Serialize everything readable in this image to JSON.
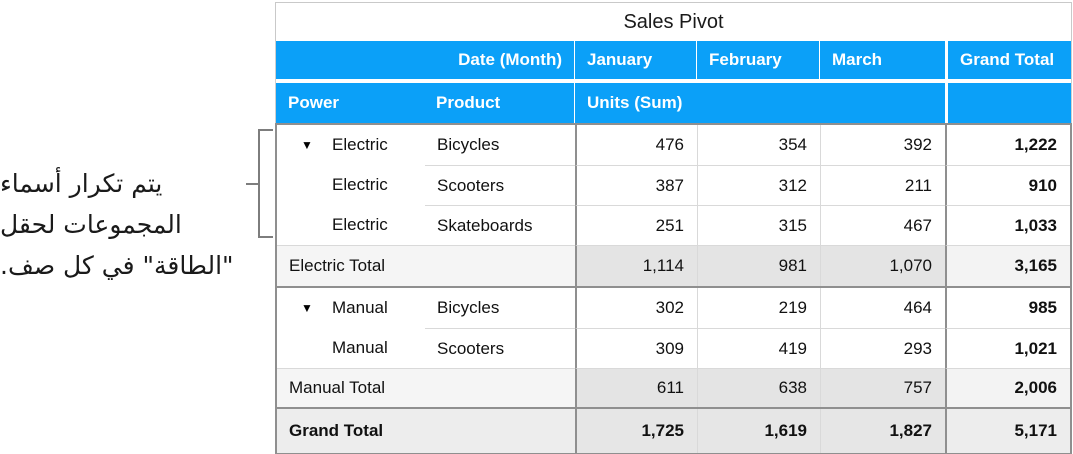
{
  "title": "Sales Pivot",
  "annotation": {
    "lines": [
      "يتم تكرار أسماء",
      "المجموعات لحقل",
      "\"الطاقة\" في كل صف."
    ]
  },
  "icons": {
    "disclosure_down": "▼"
  },
  "header": {
    "date_month": "Date (Month)",
    "months": [
      "January",
      "February",
      "March"
    ],
    "grand_total": "Grand Total",
    "power": "Power",
    "product": "Product",
    "units_sum": "Units (Sum)"
  },
  "rows": [
    {
      "power": "Electric",
      "product": "Bicycles",
      "values": [
        "476",
        "354",
        "392"
      ],
      "total": "1,222"
    },
    {
      "power": "Electric",
      "product": "Scooters",
      "values": [
        "387",
        "312",
        "211"
      ],
      "total": "910"
    },
    {
      "power": "Electric",
      "product": "Skateboards",
      "values": [
        "251",
        "315",
        "467"
      ],
      "total": "1,033"
    },
    {
      "label": "Electric Total",
      "values": [
        "1,114",
        "981",
        "1,070"
      ],
      "total": "3,165"
    },
    {
      "power": "Manual",
      "product": "Bicycles",
      "values": [
        "302",
        "219",
        "464"
      ],
      "total": "985"
    },
    {
      "power": "Manual",
      "product": "Scooters",
      "values": [
        "309",
        "419",
        "293"
      ],
      "total": "1,021"
    },
    {
      "label": "Manual Total",
      "values": [
        "611",
        "638",
        "757"
      ],
      "total": "2,006"
    },
    {
      "label": "Grand Total",
      "values": [
        "1,725",
        "1,619",
        "1,827"
      ],
      "total": "5,171"
    }
  ],
  "colors": {
    "header_blue": "#0ba0f8",
    "dark_border": "#8f8f8f",
    "light_border": "#d9d9d9",
    "subtotal_bg": "#e4e4e4",
    "subtotal_label_bg": "#f5f5f5",
    "grand_row_bg": "#e6e6e6"
  }
}
